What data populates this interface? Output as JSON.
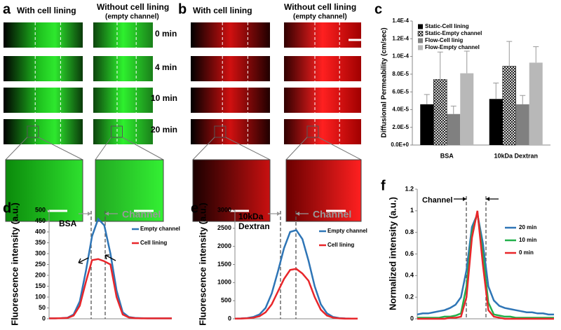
{
  "panel_a": {
    "label": "a",
    "col1": "With cell lining",
    "col2": "Without cell lining",
    "col2_note": "(empty channel)",
    "times": [
      "0 min",
      "4 min",
      "10 min",
      "20 min"
    ]
  },
  "panel_b": {
    "label": "b",
    "col1": "With cell lining",
    "col2": "Without cell lining",
    "col2_note": "(empty channel)"
  },
  "chart_data": [
    {
      "type": "bar",
      "panel": "c",
      "ylabel": "Diffusional Permeability (cm/sec)",
      "categories": [
        "BSA",
        "10kDa Dextran"
      ],
      "series": [
        {
          "name": "Static-Cell lining",
          "color": "#000000",
          "values": [
            4.6e-05,
            5.2e-05
          ],
          "errors": [
            1.1e-05,
            1.8e-05
          ]
        },
        {
          "name": "Static-Empty channel",
          "color": "#ffffff",
          "hatch": true,
          "values": [
            7.4e-05,
            8.9e-05
          ],
          "errors": [
            3.1e-05,
            2.8e-05
          ]
        },
        {
          "name": "Flow-Cell linig",
          "color": "#808080",
          "values": [
            3.5e-05,
            4.6e-05
          ],
          "errors": [
            9e-06,
            1e-05
          ]
        },
        {
          "name": "Flow-Empty channel",
          "color": "#b8b8b8",
          "values": [
            8.1e-05,
            9.3e-05
          ],
          "errors": [
            2.5e-05,
            1.8e-05
          ]
        }
      ],
      "ylim": [
        0,
        0.00014
      ],
      "yticks": [
        {
          "value": 0,
          "label": "0.0E+0"
        },
        {
          "value": 2e-05,
          "label": "2.0E-5"
        },
        {
          "value": 4e-05,
          "label": "4.0E-5"
        },
        {
          "value": 6e-05,
          "label": "6.0E-5"
        },
        {
          "value": 8e-05,
          "label": "8.0E-5"
        },
        {
          "value": 0.0001,
          "label": "1.0E-4"
        },
        {
          "value": 0.00012,
          "label": "1.2E-4"
        },
        {
          "value": 0.00014,
          "label": "1.4E-4"
        }
      ],
      "legend": "top-left"
    },
    {
      "type": "line",
      "panel": "d",
      "title": "BSA",
      "ylabel": "Fluorescence intensity (a.u.)",
      "annotation": "Channel",
      "x": [
        0,
        5,
        10,
        15,
        20,
        25,
        30,
        35,
        40,
        45,
        50,
        55,
        60,
        65,
        70,
        75,
        80,
        85,
        90,
        95,
        100
      ],
      "xlim": [
        0,
        100
      ],
      "series": [
        {
          "name": "Empty channel",
          "color": "#2e75b6",
          "values": [
            2,
            2,
            3,
            5,
            20,
            80,
            220,
            380,
            460,
            430,
            300,
            130,
            30,
            8,
            4,
            3,
            2,
            2,
            2,
            2,
            2
          ]
        },
        {
          "name": "Cell lining",
          "color": "#e8262a",
          "values": [
            2,
            2,
            3,
            4,
            15,
            60,
            170,
            270,
            275,
            265,
            250,
            100,
            20,
            6,
            3,
            2,
            2,
            2,
            2,
            2,
            2
          ]
        }
      ],
      "ylim": [
        0,
        500
      ],
      "yticks": [
        0,
        50,
        100,
        150,
        200,
        250,
        300,
        350,
        400,
        450,
        500
      ],
      "legend": "top-right"
    },
    {
      "type": "line",
      "panel": "e",
      "title": "10kDa Dextran",
      "ylabel": "Fluorescence intensity (a.u.)",
      "annotation": "Channel",
      "x": [
        0,
        5,
        10,
        15,
        20,
        25,
        30,
        35,
        40,
        45,
        50,
        55,
        60,
        65,
        70,
        75,
        80,
        85,
        90,
        95,
        100
      ],
      "xlim": [
        0,
        100
      ],
      "series": [
        {
          "name": "Empty channel",
          "color": "#2e75b6",
          "values": [
            5,
            10,
            20,
            50,
            120,
            300,
            700,
            1300,
            1950,
            2400,
            2450,
            2200,
            1600,
            900,
            400,
            150,
            50,
            20,
            10,
            5,
            5
          ]
        },
        {
          "name": "Cell lining",
          "color": "#e8262a",
          "values": [
            5,
            8,
            15,
            30,
            70,
            180,
            400,
            750,
            1100,
            1350,
            1380,
            1250,
            1050,
            600,
            250,
            90,
            30,
            12,
            6,
            4,
            4
          ]
        }
      ],
      "ylim": [
        0,
        3000
      ],
      "yticks": [
        0,
        500,
        1000,
        1500,
        2000,
        2500,
        3000
      ],
      "legend": "top-right"
    },
    {
      "type": "line",
      "panel": "f",
      "ylabel": "Normalized intensity (a.u.)",
      "annotation": "Channel",
      "x": [
        0,
        4,
        8,
        12,
        16,
        20,
        24,
        28,
        32,
        36,
        40,
        44,
        48,
        52,
        56,
        60,
        64,
        68,
        72,
        76,
        80,
        84,
        88,
        92,
        96,
        100
      ],
      "xlim": [
        0,
        100
      ],
      "series": [
        {
          "name": "20 min",
          "color": "#2e75b6",
          "values": [
            0.04,
            0.05,
            0.05,
            0.06,
            0.07,
            0.08,
            0.1,
            0.13,
            0.2,
            0.45,
            0.85,
            0.97,
            0.7,
            0.3,
            0.17,
            0.12,
            0.1,
            0.09,
            0.08,
            0.07,
            0.06,
            0.06,
            0.05,
            0.05,
            0.04,
            0.04
          ]
        },
        {
          "name": "10 min",
          "color": "#22b04b",
          "values": [
            0.01,
            0.01,
            0.01,
            0.01,
            0.01,
            0.02,
            0.02,
            0.03,
            0.05,
            0.3,
            0.8,
            0.98,
            0.6,
            0.15,
            0.04,
            0.03,
            0.02,
            0.02,
            0.01,
            0.01,
            0.01,
            0.01,
            0.01,
            0.01,
            0.01,
            0.01
          ]
        },
        {
          "name": "0 min",
          "color": "#e8262a",
          "values": [
            0,
            0,
            0,
            0,
            0,
            0,
            0.01,
            0.01,
            0.02,
            0.2,
            0.75,
            1.0,
            0.5,
            0.08,
            0.02,
            0.01,
            0,
            0,
            0,
            0,
            0,
            0,
            0,
            0,
            0,
            0
          ]
        }
      ],
      "ylim": [
        0,
        1.2
      ],
      "yticks": [
        0,
        0.2,
        0.4,
        0.6,
        0.8,
        1,
        1.2
      ],
      "legend": "right"
    }
  ]
}
